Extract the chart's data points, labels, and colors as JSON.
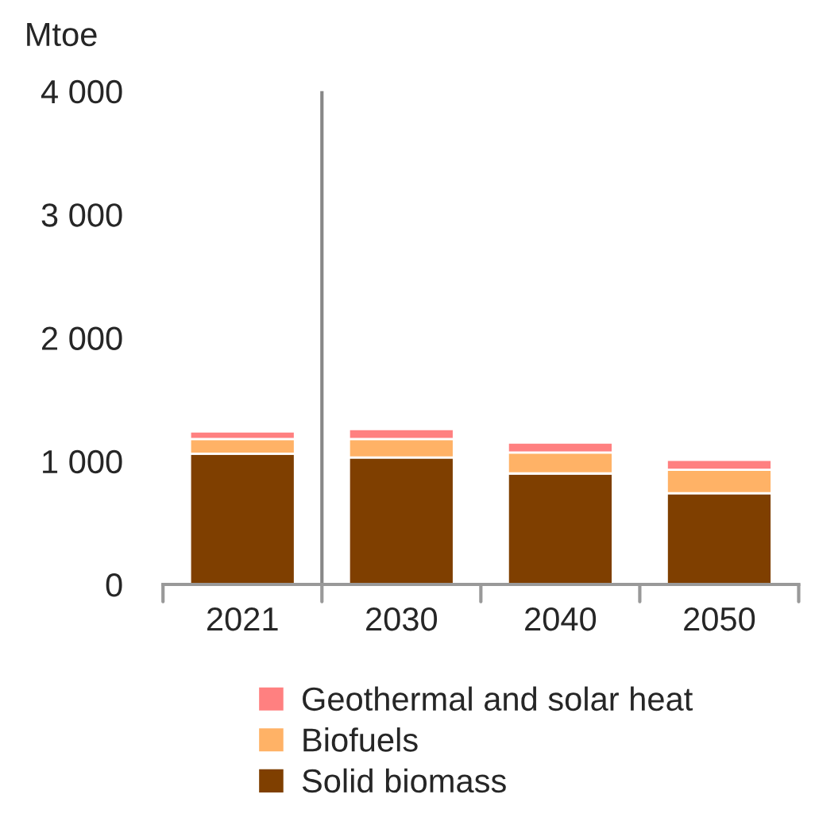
{
  "chart_data": {
    "type": "bar",
    "stacked": true,
    "ylabel": "Mtoe",
    "categories": [
      "2021",
      "2030",
      "2040",
      "2050"
    ],
    "series": [
      {
        "name": "Solid biomass",
        "color": "#7f3f00",
        "values": [
          1060,
          1030,
          900,
          740
        ]
      },
      {
        "name": "Biofuels",
        "color": "#ffb266",
        "values": [
          120,
          150,
          170,
          190
        ]
      },
      {
        "name": "Geothermal and solar heat",
        "color": "#ff8080",
        "values": [
          60,
          80,
          80,
          80
        ]
      }
    ],
    "ylim": [
      0,
      4000
    ],
    "yticks": [
      0,
      {
        "value": 1000,
        "label": "1 000"
      },
      {
        "value": 2000,
        "label": "2 000"
      },
      {
        "value": 3000,
        "label": "3 000"
      },
      {
        "value": 4000,
        "label": "4 000"
      }
    ],
    "grid": false,
    "legend": "bottom"
  }
}
